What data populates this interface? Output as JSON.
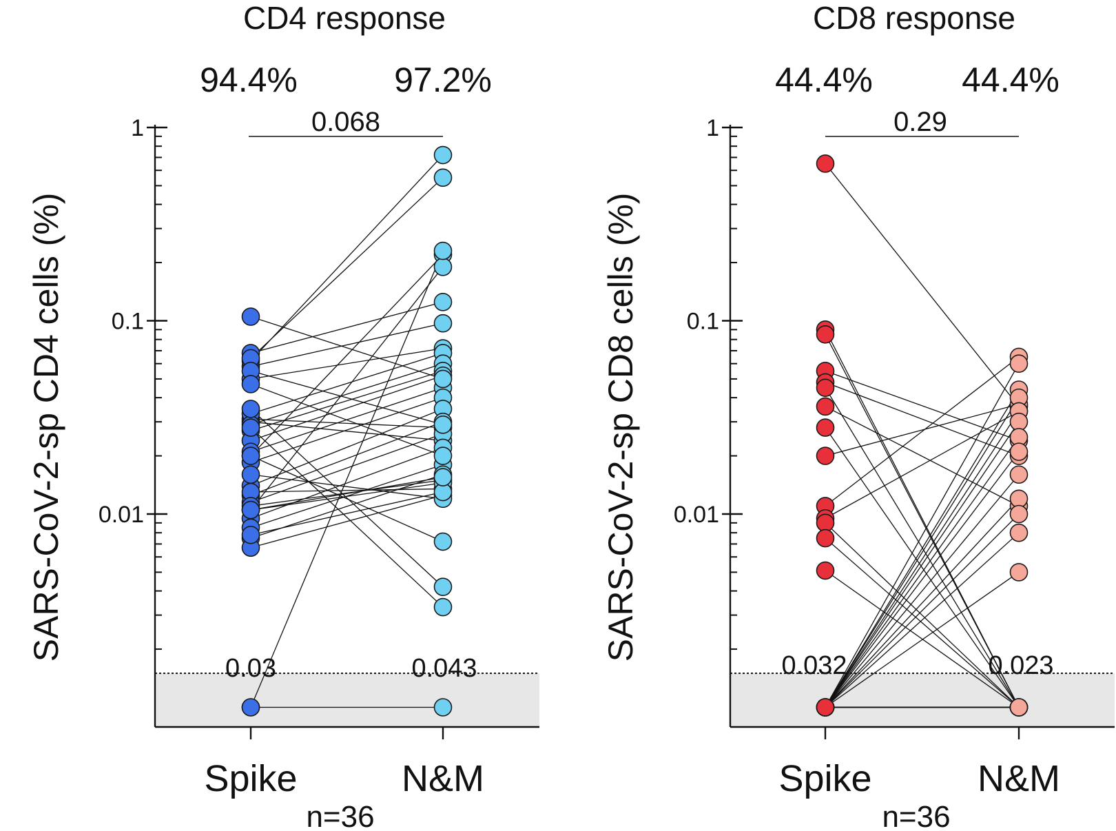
{
  "chart_data": [
    {
      "type": "scatter",
      "title": "CD4 response",
      "ylabel": "SARS-CoV-2-sp CD4 cells (%)",
      "yscale": "log",
      "ylim": [
        0.0007,
        1
      ],
      "yticks": [
        {
          "value": 1,
          "label": "1"
        },
        {
          "value": 0.1,
          "label": "0.1"
        },
        {
          "value": 0.01,
          "label": "0.01"
        }
      ],
      "categories": [
        "Spike",
        "N&M"
      ],
      "percent_labels": [
        "94.4%",
        "97.2%"
      ],
      "p_value": "0.068",
      "median_labels": [
        "0.03",
        "0.043"
      ],
      "n_label": "n=36",
      "detection_limit": 0.0015,
      "floor_value": 0.001,
      "colors": {
        "left": "#3b6fe8",
        "right": "#6fd0f2",
        "band": "#e7e7e7"
      },
      "pairs": [
        [
          0.031,
          0.028
        ],
        [
          0.03,
          0.024
        ],
        [
          0.02,
          0.22
        ],
        [
          0.0105,
          0.19
        ],
        [
          0.068,
          0.125
        ],
        [
          0.058,
          0.097
        ],
        [
          0.05,
          0.072
        ],
        [
          0.033,
          0.068
        ],
        [
          0.029,
          0.06
        ],
        [
          0.027,
          0.055
        ],
        [
          0.024,
          0.052
        ],
        [
          0.021,
          0.045
        ],
        [
          0.0185,
          0.04
        ],
        [
          0.014,
          0.035
        ],
        [
          0.0125,
          0.03
        ],
        [
          0.0115,
          0.026
        ],
        [
          0.0095,
          0.022
        ],
        [
          0.0085,
          0.018
        ],
        [
          0.0075,
          0.016
        ],
        [
          0.0067,
          0.0125
        ],
        [
          0.105,
          0.05
        ],
        [
          0.062,
          0.72
        ],
        [
          0.064,
          0.55
        ],
        [
          0.055,
          0.029
        ],
        [
          0.047,
          0.02
        ],
        [
          0.035,
          0.0042
        ],
        [
          0.028,
          0.0033
        ],
        [
          0.02,
          0.0072
        ],
        [
          0.016,
          0.012
        ],
        [
          0.013,
          0.0135
        ],
        [
          0.011,
          0.015
        ],
        [
          0.0105,
          0.0145
        ],
        [
          0.0078,
          0.013
        ],
        [
          0.0105,
          0.0155
        ],
        [
          0.001,
          0.23
        ],
        [
          0.001,
          0.001
        ]
      ]
    },
    {
      "type": "scatter",
      "title": "CD8 response",
      "ylabel": "SARS-CoV-2-sp CD8 cells (%)",
      "yscale": "log",
      "ylim": [
        0.0007,
        1
      ],
      "yticks": [
        {
          "value": 1,
          "label": "1"
        },
        {
          "value": 0.1,
          "label": "0.1"
        },
        {
          "value": 0.01,
          "label": "0.01"
        }
      ],
      "categories": [
        "Spike",
        "N&M"
      ],
      "percent_labels": [
        "44.4%",
        "44.4%"
      ],
      "p_value": "0.29",
      "median_labels": [
        "0.032",
        "0.023"
      ],
      "n_label": "n=36",
      "detection_limit": 0.0015,
      "floor_value": 0.001,
      "colors": {
        "left": "#e8303a",
        "right": "#f5a899",
        "band": "#e7e7e7"
      },
      "pairs": [
        [
          0.65,
          0.036
        ],
        [
          0.09,
          0.001
        ],
        [
          0.085,
          0.001
        ],
        [
          0.055,
          0.024
        ],
        [
          0.048,
          0.02
        ],
        [
          0.045,
          0.001
        ],
        [
          0.036,
          0.011
        ],
        [
          0.028,
          0.001
        ],
        [
          0.02,
          0.037
        ],
        [
          0.011,
          0.065
        ],
        [
          0.0095,
          0.034
        ],
        [
          0.009,
          0.001
        ],
        [
          0.0075,
          0.001
        ],
        [
          0.0051,
          0.001
        ],
        [
          0.001,
          0.06
        ],
        [
          0.001,
          0.044
        ],
        [
          0.001,
          0.04
        ],
        [
          0.001,
          0.034
        ],
        [
          0.001,
          0.03
        ],
        [
          0.001,
          0.025
        ],
        [
          0.001,
          0.021
        ],
        [
          0.001,
          0.016
        ],
        [
          0.001,
          0.012
        ],
        [
          0.001,
          0.01
        ],
        [
          0.001,
          0.008
        ],
        [
          0.001,
          0.005
        ],
        [
          0.001,
          0.001
        ],
        [
          0.001,
          0.001
        ],
        [
          0.001,
          0.001
        ],
        [
          0.001,
          0.001
        ],
        [
          0.001,
          0.001
        ],
        [
          0.001,
          0.001
        ],
        [
          0.001,
          0.001
        ],
        [
          0.001,
          0.001
        ],
        [
          0.001,
          0.001
        ],
        [
          0.001,
          0.001
        ]
      ]
    }
  ]
}
